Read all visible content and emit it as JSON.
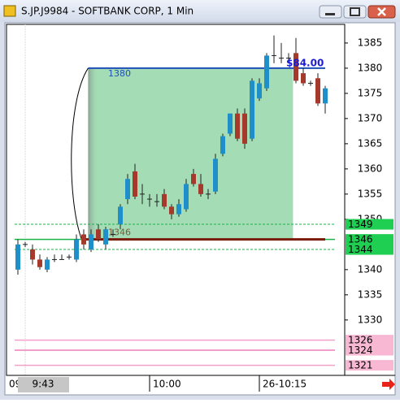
{
  "window": {
    "title": "S.JP.J9984 - SOFTBANK CORP, 1 Min"
  },
  "chart_data": {
    "type": "candlestick",
    "categories": [
      null,
      "9:43",
      null,
      null,
      null,
      null,
      null,
      null,
      null,
      null,
      null,
      null,
      null,
      null,
      null,
      null,
      null,
      null,
      "10:00",
      null,
      null,
      null,
      null,
      null,
      null,
      null,
      null,
      null,
      null,
      null,
      null,
      null,
      null,
      "26-10:15",
      null,
      null,
      null,
      null,
      null,
      null,
      null,
      null,
      null
    ],
    "edge_label": "09",
    "open": [
      1340,
      1345,
      1344,
      1342,
      1340,
      1342,
      1342,
      1342.5,
      1342,
      1347,
      1344,
      1348,
      1345,
      1347,
      1349,
      1354,
      1359.5,
      1355,
      1354,
      1353.5,
      1355,
      1352.5,
      1351,
      1352,
      1359,
      1357,
      1355,
      1355.5,
      1363,
      1367,
      1371,
      1371,
      1366,
      1374,
      1376,
      1382.5,
      1382,
      1382,
      1383,
      1379,
      1377,
      1378,
      1373
    ],
    "high": [
      1346,
      1345.5,
      1345,
      1343,
      1342.5,
      1343,
      1343,
      1343,
      1347,
      1348,
      1348,
      1349,
      1348.5,
      1348,
      1353,
      1359,
      1361,
      1357,
      1355,
      1355,
      1356,
      1353,
      1354,
      1358,
      1360,
      1359,
      1356,
      1363,
      1367,
      1371,
      1372,
      1372,
      1378,
      1378,
      1383,
      1386.5,
      1385,
      1383,
      1386,
      1380,
      1377.5,
      1379,
      1376.5
    ],
    "low": [
      1339,
      1344.5,
      1341,
      1340,
      1339.5,
      1341.5,
      1342,
      1342,
      1341.5,
      1344,
      1343.5,
      1345.5,
      1344,
      1346.5,
      1348,
      1353,
      1354,
      1353,
      1352.5,
      1352.5,
      1352,
      1350,
      1350.5,
      1351.5,
      1356.5,
      1354.5,
      1354,
      1355,
      1362.5,
      1366.5,
      1365.5,
      1364,
      1365.5,
      1373.5,
      1375.5,
      1381,
      1381,
      1381,
      1377,
      1376.5,
      1376.5,
      1372.5,
      1371
    ],
    "close": [
      1345,
      1345,
      1342,
      1340.5,
      1342,
      1342,
      1342,
      1342.5,
      1346,
      1345,
      1347,
      1346,
      1348,
      1347,
      1352.5,
      1358,
      1354.5,
      1355,
      1354,
      1353.5,
      1352.5,
      1351,
      1353,
      1357,
      1357,
      1355,
      1355,
      1362,
      1366.5,
      1371,
      1366,
      1365,
      1377.5,
      1377,
      1382.5,
      1382.5,
      1382,
      1382,
      1377.5,
      1377,
      1377,
      1373,
      1376
    ],
    "up_color": "#1e8fc8",
    "down_color": "#a5392b",
    "ylim": [
      1319,
      1388.7
    ],
    "yticks": [
      1385,
      1380,
      1375,
      1370,
      1365,
      1360,
      1355,
      1350,
      1340,
      1335,
      1330
    ],
    "zone": {
      "high": 1380,
      "low": 1346,
      "color": "#a3dcb5",
      "high_color": "#1f4fb8",
      "low_color": "#7a1a08"
    },
    "price_label": "$84.00",
    "levels": [
      {
        "value": 1349,
        "color": "#19b34a",
        "box": "#1fcf52",
        "style": "dashed"
      },
      {
        "value": 1346,
        "color": "#19b34a",
        "box": "#1fcf52",
        "style": "solid"
      },
      {
        "value": 1344,
        "color": "#19b34a",
        "box": "#1fcf52",
        "style": "dashed"
      },
      {
        "value": 1326,
        "color": "#f3a0c8",
        "box": "#f8b8d4",
        "style": "solid"
      },
      {
        "value": 1324,
        "color": "#ee7fb8",
        "box": "#f8b8d4",
        "style": "solid"
      },
      {
        "value": 1321,
        "color": "#f3a0c8",
        "box": "#f8b8d4",
        "style": "solid"
      }
    ]
  }
}
